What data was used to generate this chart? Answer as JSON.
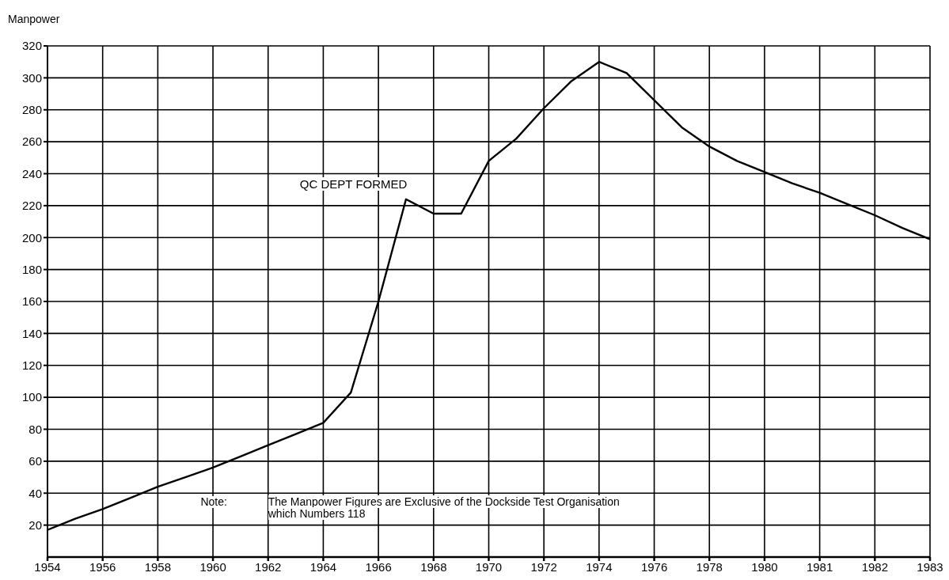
{
  "chart_data": {
    "type": "line",
    "ylabel": "Manpower",
    "categories": [
      "1954",
      null,
      "1956",
      null,
      "1958",
      null,
      "1960",
      null,
      "1962",
      null,
      "1964",
      null,
      "1966",
      null,
      "1968",
      null,
      "1970",
      null,
      "1972",
      null,
      "1974",
      null,
      "1976",
      null,
      "1978",
      null,
      "1980",
      null,
      "1981",
      null,
      "1982",
      null,
      "1983"
    ],
    "series": [
      {
        "color": "#000000",
        "values": [
          17,
          24,
          30,
          37,
          44,
          50,
          56,
          63,
          70,
          77,
          84,
          103,
          160,
          224,
          215,
          215,
          248,
          262,
          281,
          298,
          310,
          303,
          286,
          269,
          257,
          248,
          241,
          234,
          228,
          221,
          214,
          206,
          199
        ]
      }
    ],
    "ylim": [
      0,
      320
    ],
    "yticks": [
      20,
      40,
      60,
      80,
      100,
      120,
      140,
      160,
      180,
      200,
      220,
      240,
      260,
      280,
      300,
      320
    ],
    "grid": true,
    "marker": "none",
    "line_style": "solid",
    "annotations": [
      "QC DEPT FORMED",
      "Note:",
      "The Manpower Figures are Exclusive of the Dockside Test Organisation\nwhich Numbers 118"
    ]
  }
}
